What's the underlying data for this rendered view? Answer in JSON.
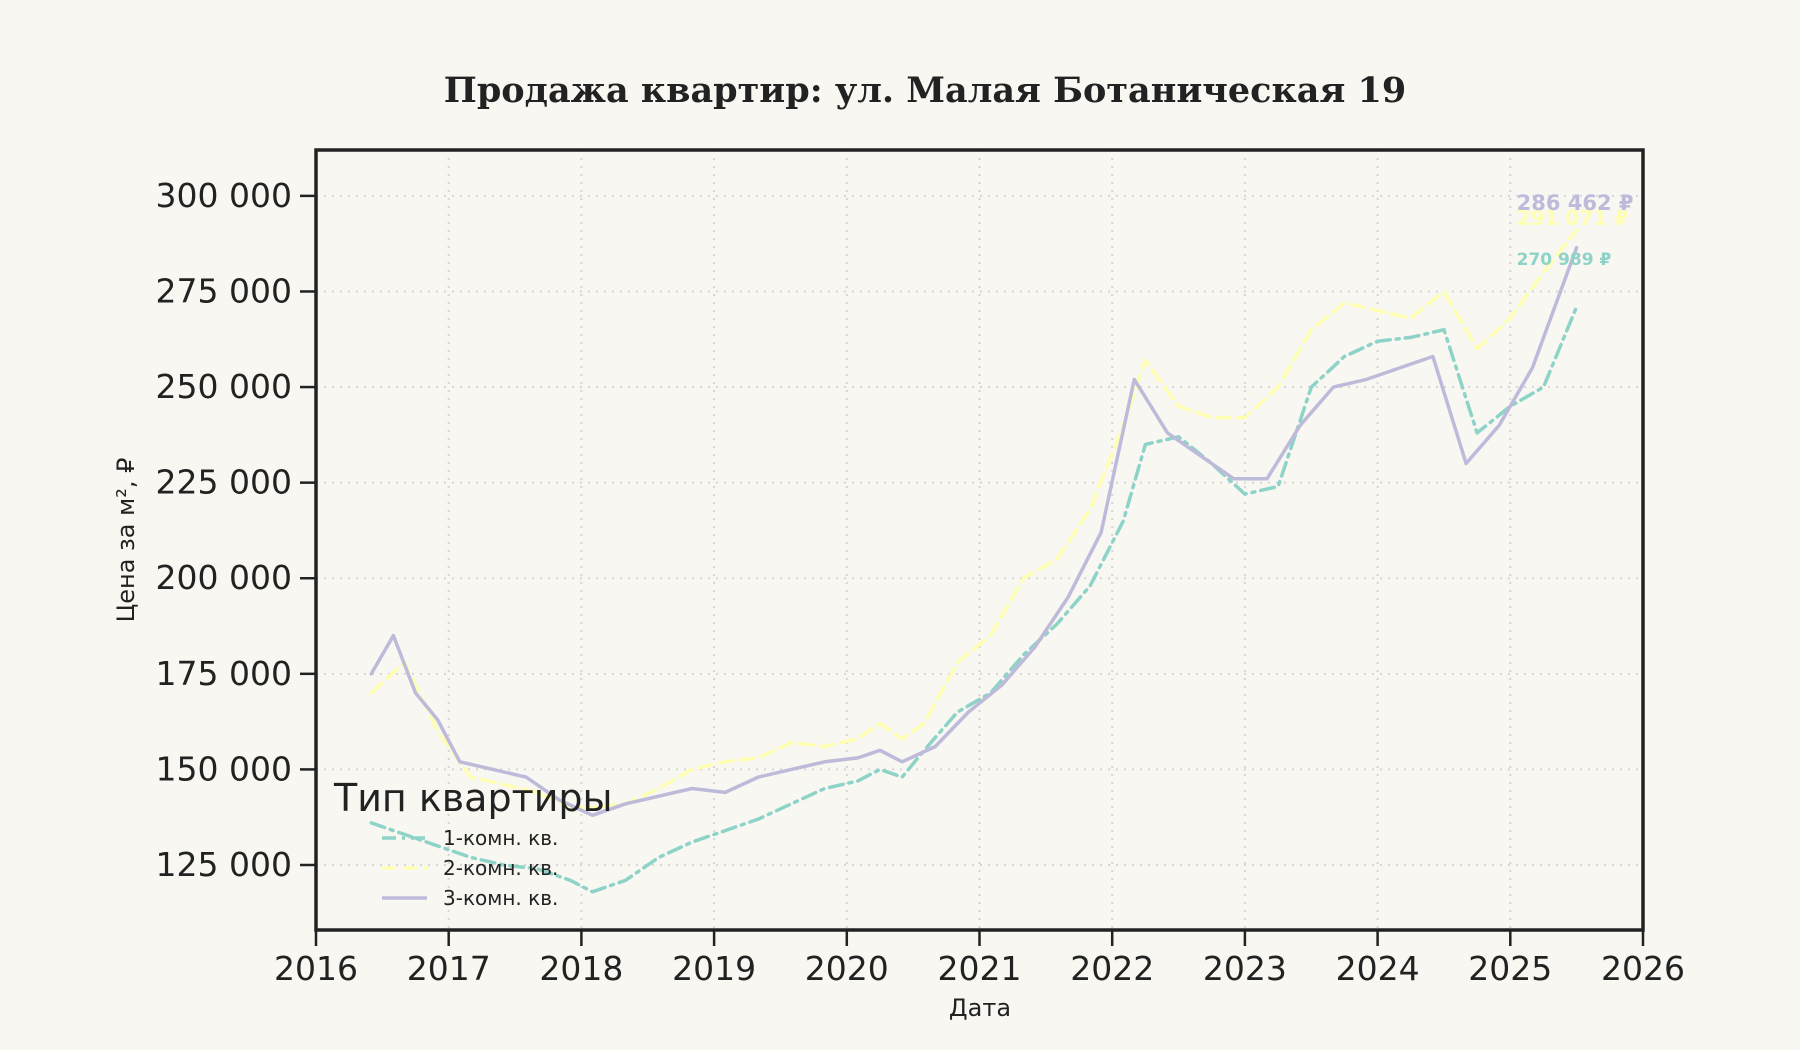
{
  "chart_data": {
    "type": "line",
    "title": "Продажа квартир: ул. Малая Ботаническая 19",
    "xlabel": "Дата",
    "ylabel": "Цена за м², ₽",
    "xlim": [
      "2016-01-01",
      "2026-01-01"
    ],
    "ylim": [
      108000,
      312000
    ],
    "x_ticks": [
      "2016",
      "2017",
      "2018",
      "2019",
      "2020",
      "2021",
      "2022",
      "2023",
      "2024",
      "2025",
      "2026"
    ],
    "y_ticks": [
      125000,
      150000,
      175000,
      200000,
      225000,
      250000,
      275000,
      300000
    ],
    "y_tick_labels": [
      "125 000",
      "150 000",
      "175 000",
      "200 000",
      "225 000",
      "250 000",
      "275 000",
      "300 000"
    ],
    "grid": true,
    "legend": {
      "title": "Тип квартиры",
      "placement": "lower-left"
    },
    "series": [
      {
        "name": "1-комн. кв.",
        "color": "#8dd3c7",
        "style": "dashdot",
        "end_label": "270 989 ₽",
        "x": [
          "2016-06",
          "2016-09",
          "2016-12",
          "2017-03",
          "2017-06",
          "2017-09",
          "2017-12",
          "2018-02",
          "2018-05",
          "2018-08",
          "2018-11",
          "2019-02",
          "2019-05",
          "2019-08",
          "2019-11",
          "2020-02",
          "2020-04",
          "2020-06",
          "2020-08",
          "2020-11",
          "2021-02",
          "2021-05",
          "2021-08",
          "2021-11",
          "2022-02",
          "2022-04",
          "2022-07",
          "2022-10",
          "2023-01",
          "2023-04",
          "2023-07",
          "2023-10",
          "2024-01",
          "2024-04",
          "2024-07",
          "2024-10",
          "2025-01",
          "2025-04",
          "2025-07"
        ],
        "y": [
          136000,
          133000,
          130000,
          127000,
          125000,
          124000,
          121000,
          118000,
          121000,
          127000,
          131000,
          134000,
          137000,
          141000,
          145000,
          147000,
          150000,
          148000,
          155000,
          165000,
          170000,
          180000,
          188000,
          198000,
          215000,
          235000,
          237000,
          230000,
          222000,
          224000,
          250000,
          258000,
          262000,
          263000,
          265000,
          238000,
          245000,
          250000,
          270989
        ]
      },
      {
        "name": "2-комн. кв.",
        "color": "#ffffb3",
        "style": "dashed",
        "end_label": "291 071 ₽",
        "x": [
          "2016-06",
          "2016-09",
          "2016-12",
          "2017-03",
          "2017-06",
          "2017-09",
          "2017-12",
          "2018-02",
          "2018-05",
          "2018-08",
          "2018-11",
          "2019-02",
          "2019-05",
          "2019-08",
          "2019-11",
          "2020-02",
          "2020-04",
          "2020-06",
          "2020-08",
          "2020-11",
          "2021-02",
          "2021-05",
          "2021-08",
          "2021-11",
          "2022-02",
          "2022-04",
          "2022-07",
          "2022-10",
          "2023-01",
          "2023-04",
          "2023-07",
          "2023-10",
          "2024-01",
          "2024-04",
          "2024-07",
          "2024-10",
          "2025-01",
          "2025-04",
          "2025-07"
        ],
        "y": [
          170000,
          178000,
          160000,
          148000,
          146000,
          144000,
          140000,
          140000,
          141000,
          145000,
          150000,
          152000,
          153000,
          157000,
          156000,
          158000,
          162000,
          158000,
          162000,
          178000,
          185000,
          200000,
          205000,
          218000,
          240000,
          257000,
          245000,
          242000,
          242000,
          250000,
          265000,
          272000,
          270000,
          268000,
          275000,
          260000,
          268000,
          280000,
          291071
        ]
      },
      {
        "name": "3-комн. кв.",
        "color": "#bebada",
        "style": "solid",
        "end_label": "286 462 ₽",
        "x": [
          "2016-06",
          "2016-08",
          "2016-10",
          "2016-12",
          "2017-02",
          "2017-05",
          "2017-08",
          "2017-11",
          "2018-02",
          "2018-05",
          "2018-08",
          "2018-11",
          "2019-02",
          "2019-05",
          "2019-08",
          "2019-11",
          "2020-02",
          "2020-04",
          "2020-06",
          "2020-09",
          "2020-12",
          "2021-03",
          "2021-06",
          "2021-09",
          "2021-12",
          "2022-03",
          "2022-06",
          "2022-09",
          "2022-12",
          "2023-03",
          "2023-06",
          "2023-09",
          "2023-12",
          "2024-03",
          "2024-06",
          "2024-09",
          "2024-12",
          "2025-03",
          "2025-07"
        ],
        "y": [
          175000,
          185000,
          170000,
          163000,
          152000,
          150000,
          148000,
          142000,
          138000,
          141000,
          143000,
          145000,
          144000,
          148000,
          150000,
          152000,
          153000,
          155000,
          152000,
          156000,
          165000,
          172000,
          182000,
          195000,
          212000,
          252000,
          238000,
          232000,
          226000,
          226000,
          240000,
          250000,
          252000,
          255000,
          258000,
          230000,
          240000,
          255000,
          286462
        ]
      }
    ]
  }
}
